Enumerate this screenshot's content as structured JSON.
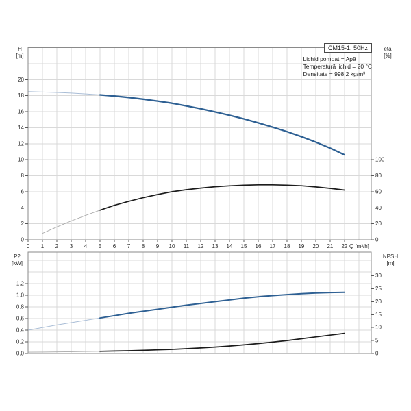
{
  "header": {
    "info_lines": [
      "Lichid pompat = Apă",
      "Temperatură lichid = 20 °C",
      "Densitate = 998.2 kg/m³"
    ]
  },
  "chart_data": [
    {
      "id": "top",
      "type": "line",
      "title": "CM15-1, 50Hz",
      "xlabel": "Q [m³/h]",
      "ylabel_left": "H [m]",
      "ylabel_left_lines": [
        "H",
        "[m]"
      ],
      "ylabel_right": "eta [%]",
      "ylabel_right_lines": [
        "eta",
        "[%]"
      ],
      "xlim": [
        0,
        23.86
      ],
      "ylim_left": [
        0,
        24
      ],
      "right_axis_full_scale": 240,
      "x_grid_step": 1,
      "y_grid_step_left": 2,
      "x_tick_labels": [
        "0",
        "1",
        "2",
        "3",
        "4",
        "5",
        "6",
        "7",
        "8",
        "9",
        "10",
        "11",
        "12",
        "13",
        "14",
        "15",
        "16",
        "17",
        "18",
        "19",
        "20",
        "21",
        "22"
      ],
      "y_tick_labels_left": [
        "0",
        "2",
        "4",
        "6",
        "8",
        "10",
        "12",
        "14",
        "16",
        "18",
        "20"
      ],
      "y_tick_labels_right": [
        "0",
        "20",
        "40",
        "60",
        "80",
        "100"
      ],
      "grid": true,
      "legend": "none",
      "series": [
        {
          "name": "head",
          "axis": "left",
          "color": "#2e6093",
          "thin_color": "#a9bdd6",
          "width": 2.3,
          "thin_width": 1,
          "split_x": 5,
          "x": [
            0,
            1,
            2,
            3,
            4,
            5,
            6,
            7,
            8,
            9,
            10,
            11,
            12,
            13,
            14,
            15,
            16,
            17,
            18,
            19,
            20,
            21,
            22
          ],
          "y": [
            18.5,
            18.45,
            18.4,
            18.32,
            18.22,
            18.1,
            17.95,
            17.77,
            17.56,
            17.32,
            17.05,
            16.72,
            16.36,
            15.97,
            15.55,
            15.1,
            14.6,
            14.07,
            13.5,
            12.88,
            12.2,
            11.45,
            10.6
          ]
        },
        {
          "name": "eta",
          "axis": "right",
          "color": "#1c1c1c",
          "thin_color": "#a8a8a8",
          "width": 1.7,
          "thin_width": 0.9,
          "split_x": 5,
          "x": [
            1,
            2,
            3,
            4,
            5,
            6,
            7,
            8,
            9,
            10,
            11,
            12,
            13,
            14,
            15,
            16,
            17,
            18,
            19,
            20,
            21,
            22
          ],
          "y": [
            8,
            16,
            23.5,
            30.5,
            37,
            43,
            48,
            52.5,
            56.5,
            60,
            62.5,
            64.5,
            66.2,
            67.3,
            68.1,
            68.6,
            68.6,
            68.2,
            67.4,
            66,
            64.2,
            62
          ]
        }
      ]
    },
    {
      "id": "bottom",
      "type": "line",
      "title": "",
      "xlabel": "",
      "ylabel_left": "P2 [kW]",
      "ylabel_left_lines": [
        "P2",
        "[kW]"
      ],
      "ylabel_right": "NPSH [m]",
      "ylabel_right_lines": [
        "NPSH",
        "[m]"
      ],
      "xlim": [
        0,
        23.86
      ],
      "ylim_left": [
        0,
        1.743
      ],
      "right_axis_full_scale": 39.2,
      "x_grid_step": 1,
      "y_grid_step_left": 0.2,
      "x_tick_labels": [],
      "y_tick_labels_left": [
        "0.0",
        "0.2",
        "0.4",
        "0.6",
        "0.8",
        "1.0",
        "1.2"
      ],
      "y_tick_labels_right": [
        "0",
        "5",
        "10",
        "15",
        "20",
        "25",
        "30"
      ],
      "grid": true,
      "legend": "none",
      "series": [
        {
          "name": "p2",
          "axis": "left",
          "color": "#2e6093",
          "thin_color": "#a9bdd6",
          "width": 2.0,
          "thin_width": 1,
          "split_x": 5,
          "x": [
            0,
            1,
            2,
            3,
            4,
            5,
            6,
            7,
            8,
            9,
            10,
            11,
            12,
            13,
            14,
            15,
            16,
            17,
            18,
            19,
            20,
            21,
            22
          ],
          "y": [
            0.4,
            0.445,
            0.49,
            0.53,
            0.57,
            0.61,
            0.65,
            0.69,
            0.725,
            0.76,
            0.795,
            0.83,
            0.86,
            0.89,
            0.92,
            0.95,
            0.975,
            0.995,
            1.012,
            1.027,
            1.04,
            1.047,
            1.05
          ]
        },
        {
          "name": "npsh",
          "axis": "right",
          "color": "#1c1c1c",
          "thin_color": "#a8a8a8",
          "width": 1.7,
          "thin_width": 0.9,
          "split_x": 5,
          "x": [
            0,
            1,
            2,
            3,
            4,
            5,
            6,
            7,
            8,
            9,
            10,
            11,
            12,
            13,
            14,
            15,
            16,
            17,
            18,
            19,
            20,
            21,
            22
          ],
          "y": [
            0.5,
            0.55,
            0.6,
            0.68,
            0.76,
            0.85,
            0.95,
            1.07,
            1.22,
            1.4,
            1.6,
            1.85,
            2.15,
            2.5,
            2.9,
            3.35,
            3.85,
            4.4,
            5.0,
            5.7,
            6.4,
            7.1,
            7.8
          ]
        }
      ]
    }
  ]
}
